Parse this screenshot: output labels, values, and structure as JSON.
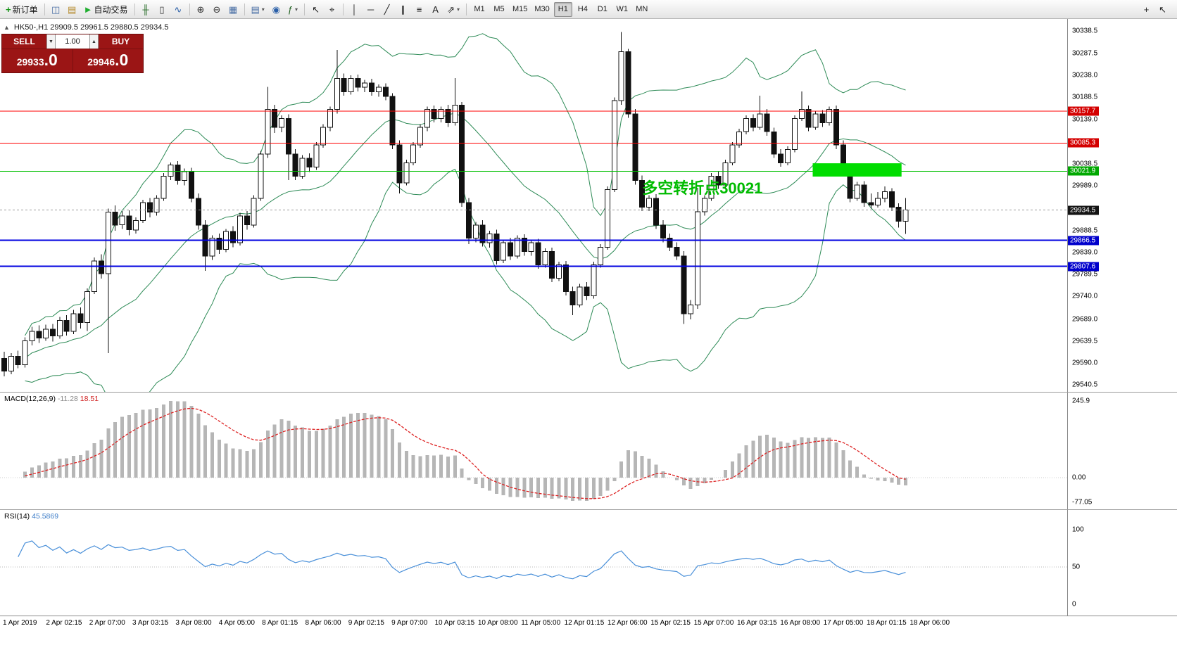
{
  "toolbar": {
    "groups": [
      {
        "items": [
          {
            "id": "new-order",
            "glyph": "+",
            "color": "#169416",
            "label": "新订单"
          }
        ]
      },
      {
        "items": [
          {
            "id": "chart-window",
            "glyph": "◫",
            "color": "#4a6fa5"
          },
          {
            "id": "profiles",
            "glyph": "▤",
            "color": "#b58a2a"
          },
          {
            "id": "autotrading",
            "glyph": "►",
            "color": "#1fae2f",
            "label": "自动交易"
          }
        ]
      },
      {
        "items": [
          {
            "id": "bar-chart",
            "glyph": "╫",
            "color": "#2a6e2a"
          },
          {
            "id": "candlestick-chart",
            "glyph": "▯",
            "color": "#333333"
          },
          {
            "id": "line-chart",
            "glyph": "∿",
            "color": "#2a5fa8"
          }
        ]
      },
      {
        "items": [
          {
            "id": "zoom-in",
            "glyph": "⊕",
            "color": "#333333"
          },
          {
            "id": "zoom-out",
            "glyph": "⊖",
            "color": "#333333"
          },
          {
            "id": "tile-windows",
            "glyph": "▦",
            "color": "#4a6fa5"
          }
        ]
      },
      {
        "items": [
          {
            "id": "new-chart",
            "glyph": "▤",
            "color": "#4a6fa5",
            "dropdown": true
          },
          {
            "id": "navigator",
            "glyph": "◉",
            "color": "#2a5fa8"
          },
          {
            "id": "indicators",
            "glyph": "ƒ",
            "color": "#206020",
            "dropdown": true
          }
        ]
      },
      {
        "items": [
          {
            "id": "cursor",
            "glyph": "↖",
            "color": "#222222"
          },
          {
            "id": "crosshair",
            "glyph": "⌖",
            "color": "#222222"
          }
        ]
      },
      {
        "items": [
          {
            "id": "vertical-line",
            "glyph": "│",
            "color": "#222222"
          },
          {
            "id": "horizontal-line",
            "glyph": "─",
            "color": "#222222"
          },
          {
            "id": "trendline",
            "glyph": "╱",
            "color": "#222222"
          },
          {
            "id": "channel",
            "glyph": "∥",
            "color": "#222222"
          },
          {
            "id": "fibonacci",
            "glyph": "≡",
            "color": "#222222"
          },
          {
            "id": "text",
            "glyph": "A",
            "color": "#222222"
          },
          {
            "id": "arrows",
            "glyph": "⇗",
            "color": "#222222",
            "dropdown": true
          }
        ]
      }
    ],
    "timeframes": {
      "items": [
        "M1",
        "M5",
        "M15",
        "M30",
        "H1",
        "H4",
        "D1",
        "W1",
        "MN"
      ],
      "active": "H1"
    },
    "right_icons": [
      {
        "id": "add",
        "glyph": "+"
      },
      {
        "id": "pointer-alt",
        "glyph": "↖"
      }
    ]
  },
  "symbol_line": {
    "text": "HK50-,H1 29909.5 29961.5 29880.5 29934.5"
  },
  "one_click": {
    "toggle_glyph": "▲",
    "sell_label": "SELL",
    "buy_label": "BUY",
    "volume": "1.00",
    "spin_up": "▲",
    "spin_down": "▼",
    "sell_price_int": "29933",
    "sell_price_frac": ".0",
    "buy_price_int": "29946",
    "buy_price_frac": ".0",
    "panel_color": "#9b1515"
  },
  "colors": {
    "candle_bull": "#ffffff",
    "candle_bear": "#111111",
    "wick": "#111111",
    "bollinger": "#2E8B57",
    "macd_histogram": "#b6b6b6",
    "macd_signal": "#dd2222",
    "rsi_line": "#4a90d9",
    "current_price_tag": "#141414"
  },
  "chart_data": {
    "type": "candlestick",
    "symbol": "HK50-",
    "timeframe": "H1",
    "ohlc_display": {
      "open": "29909.5",
      "high": "29961.5",
      "low": "29880.5",
      "close": "29934.5"
    },
    "price_axis": {
      "min": 29525,
      "max": 30365,
      "labels": [
        30338.5,
        30287.5,
        30238.0,
        30188.5,
        30139.0,
        30038.5,
        29989.0,
        29888.5,
        29839.0,
        29789.5,
        29740.0,
        29689.0,
        29639.5,
        29590.0,
        29540.5
      ]
    },
    "time_labels": [
      "1 Apr 2019",
      "2 Apr 02:15",
      "2 Apr 07:00",
      "3 Apr 03:15",
      "3 Apr 08:00",
      "4 Apr 05:00",
      "8 Apr 01:15",
      "8 Apr 06:00",
      "9 Apr 02:15",
      "9 Apr 07:00",
      "10 Apr 03:15",
      "10 Apr 08:00",
      "11 Apr 05:00",
      "12 Apr 01:15",
      "12 Apr 06:00",
      "15 Apr 02:15",
      "15 Apr 07:00",
      "16 Apr 03:15",
      "16 Apr 08:00",
      "17 Apr 05:00",
      "18 Apr 01:15",
      "18 Apr 06:00"
    ],
    "candles": [
      [
        29600,
        29615,
        29560,
        29572
      ],
      [
        29572,
        29612,
        29565,
        29605
      ],
      [
        29605,
        29618,
        29578,
        29586
      ],
      [
        29586,
        29648,
        29580,
        29640
      ],
      [
        29640,
        29672,
        29630,
        29661
      ],
      [
        29661,
        29675,
        29635,
        29646
      ],
      [
        29646,
        29676,
        29640,
        29666
      ],
      [
        29666,
        29678,
        29638,
        29651
      ],
      [
        29651,
        29694,
        29645,
        29686
      ],
      [
        29686,
        29698,
        29652,
        29661
      ],
      [
        29661,
        29710,
        29655,
        29701
      ],
      [
        29701,
        29715,
        29668,
        29681
      ],
      [
        29681,
        29758,
        29662,
        29751
      ],
      [
        29751,
        29828,
        29745,
        29820
      ],
      [
        29820,
        29835,
        29780,
        29791
      ],
      [
        29791,
        29938,
        29612,
        29930
      ],
      [
        29930,
        29945,
        29888,
        29901
      ],
      [
        29901,
        29932,
        29892,
        29921
      ],
      [
        29921,
        29934,
        29878,
        29890
      ],
      [
        29890,
        29918,
        29882,
        29911
      ],
      [
        29911,
        29958,
        29905,
        29951
      ],
      [
        29951,
        29962,
        29918,
        29930
      ],
      [
        29930,
        29968,
        29922,
        29961
      ],
      [
        29961,
        30018,
        29955,
        30011
      ],
      [
        30011,
        30042,
        30002,
        30036
      ],
      [
        30036,
        30045,
        29992,
        30001
      ],
      [
        30001,
        30028,
        29990,
        30021
      ],
      [
        30021,
        30030,
        29952,
        29961
      ],
      [
        29961,
        29972,
        29890,
        29901
      ],
      [
        29901,
        29912,
        29798,
        29831
      ],
      [
        29831,
        29878,
        29822,
        29871
      ],
      [
        29871,
        29882,
        29836,
        29846
      ],
      [
        29846,
        29892,
        29840,
        29886
      ],
      [
        29886,
        29898,
        29851,
        29861
      ],
      [
        29861,
        29928,
        29855,
        29921
      ],
      [
        29921,
        29932,
        29890,
        29901
      ],
      [
        29901,
        29968,
        29895,
        29961
      ],
      [
        29961,
        30068,
        29955,
        30061
      ],
      [
        30061,
        30212,
        30052,
        30161
      ],
      [
        30161,
        30172,
        30108,
        30121
      ],
      [
        30121,
        30148,
        30110,
        30141
      ],
      [
        30141,
        30150,
        30002,
        30061
      ],
      [
        30061,
        30072,
        30002,
        30011
      ],
      [
        30011,
        30058,
        30005,
        30051
      ],
      [
        30051,
        30062,
        30020,
        30031
      ],
      [
        30031,
        30088,
        30025,
        30081
      ],
      [
        30081,
        30128,
        30075,
        30121
      ],
      [
        30121,
        30168,
        30112,
        30161
      ],
      [
        30161,
        30295,
        30152,
        30231
      ],
      [
        30231,
        30242,
        30192,
        30201
      ],
      [
        30201,
        30238,
        30195,
        30231
      ],
      [
        30231,
        30240,
        30202,
        30211
      ],
      [
        30211,
        30228,
        30200,
        30221
      ],
      [
        30221,
        30230,
        30192,
        30201
      ],
      [
        30201,
        30218,
        30190,
        30211
      ],
      [
        30211,
        30220,
        30182,
        30191
      ],
      [
        30191,
        30198,
        30072,
        30081
      ],
      [
        30081,
        30092,
        29972,
        29996
      ],
      [
        29996,
        30048,
        29990,
        30041
      ],
      [
        30041,
        30088,
        30035,
        30081
      ],
      [
        30081,
        30128,
        30075,
        30121
      ],
      [
        30121,
        30168,
        30112,
        30161
      ],
      [
        30161,
        30170,
        30132,
        30141
      ],
      [
        30141,
        30168,
        30132,
        30161
      ],
      [
        30161,
        30172,
        30122,
        30131
      ],
      [
        30131,
        30232,
        30125,
        30171
      ],
      [
        30171,
        30178,
        29942,
        29951
      ],
      [
        29951,
        29962,
        29858,
        29871
      ],
      [
        29871,
        29908,
        29862,
        29901
      ],
      [
        29901,
        29912,
        29852,
        29861
      ],
      [
        29861,
        29888,
        29850,
        29881
      ],
      [
        29881,
        29890,
        29812,
        29821
      ],
      [
        29821,
        29868,
        29815,
        29861
      ],
      [
        29861,
        29872,
        29822,
        29831
      ],
      [
        29831,
        29878,
        29825,
        29871
      ],
      [
        29871,
        29880,
        29832,
        29841
      ],
      [
        29841,
        29868,
        29832,
        29861
      ],
      [
        29861,
        29870,
        29802,
        29811
      ],
      [
        29811,
        29848,
        29805,
        29841
      ],
      [
        29841,
        29850,
        29772,
        29781
      ],
      [
        29781,
        29818,
        29775,
        29811
      ],
      [
        29811,
        29820,
        29742,
        29751
      ],
      [
        29751,
        29762,
        29698,
        29721
      ],
      [
        29721,
        29768,
        29715,
        29761
      ],
      [
        29761,
        29772,
        29732,
        29741
      ],
      [
        29741,
        29818,
        29735,
        29811
      ],
      [
        29811,
        29858,
        29805,
        29851
      ],
      [
        29851,
        29988,
        29845,
        29981
      ],
      [
        29981,
        30188,
        29975,
        30181
      ],
      [
        30181,
        30336,
        30172,
        30291
      ],
      [
        30291,
        30298,
        30142,
        30151
      ],
      [
        30151,
        30162,
        29992,
        30001
      ],
      [
        30001,
        30012,
        29932,
        29941
      ],
      [
        29941,
        29968,
        29932,
        29961
      ],
      [
        29961,
        29970,
        29892,
        29901
      ],
      [
        29901,
        29912,
        29862,
        29871
      ],
      [
        29871,
        29882,
        29842,
        29851
      ],
      [
        29851,
        29862,
        29822,
        29831
      ],
      [
        29831,
        29842,
        29678,
        29701
      ],
      [
        29701,
        29732,
        29688,
        29721
      ],
      [
        29721,
        29985,
        29712,
        29931
      ],
      [
        29931,
        29968,
        29922,
        29961
      ],
      [
        29961,
        30018,
        29955,
        30011
      ],
      [
        30011,
        30022,
        29982,
        29991
      ],
      [
        29991,
        30048,
        29985,
        30041
      ],
      [
        30041,
        30088,
        30035,
        30081
      ],
      [
        30081,
        30118,
        30075,
        30111
      ],
      [
        30111,
        30148,
        30105,
        30141
      ],
      [
        30141,
        30150,
        30112,
        30121
      ],
      [
        30121,
        30192,
        30115,
        30151
      ],
      [
        30151,
        30162,
        30102,
        30111
      ],
      [
        30111,
        30120,
        30052,
        30061
      ],
      [
        30061,
        30072,
        30032,
        30041
      ],
      [
        30041,
        30078,
        30035,
        30071
      ],
      [
        30071,
        30148,
        30065,
        30141
      ],
      [
        30141,
        30202,
        30135,
        30161
      ],
      [
        30161,
        30170,
        30112,
        30121
      ],
      [
        30121,
        30158,
        30115,
        30151
      ],
      [
        30151,
        30160,
        30122,
        30131
      ],
      [
        30131,
        30168,
        30125,
        30161
      ],
      [
        30161,
        30170,
        30072,
        30081
      ],
      [
        30081,
        30092,
        30012,
        30021
      ],
      [
        30021,
        30032,
        29952,
        29961
      ],
      [
        29961,
        29998,
        29955,
        29991
      ],
      [
        29991,
        30000,
        29942,
        29951
      ],
      [
        29951,
        29972,
        29938,
        29946
      ],
      [
        29946,
        29975,
        29940,
        29961
      ],
      [
        29961,
        29988,
        29952,
        29976
      ],
      [
        29976,
        29984,
        29932,
        29941
      ],
      [
        29941,
        29950,
        29895,
        29909.5
      ],
      [
        29909.5,
        29961.5,
        29880.5,
        29934.5
      ]
    ],
    "bollinger": {
      "period": 20,
      "deviation": 2
    },
    "hlines": [
      {
        "value": 30157.7,
        "color": "#ff0000",
        "tag": "#d40000",
        "lw": 1
      },
      {
        "value": 30085.3,
        "color": "#ff0000",
        "tag": "#d40000",
        "lw": 1
      },
      {
        "value": 30021.9,
        "color": "#00c000",
        "tag": "#00a800",
        "lw": 1
      },
      {
        "value": 29866.5,
        "color": "#0000e0",
        "tag": "#0000cc",
        "lw": 2
      },
      {
        "value": 29807.6,
        "color": "#0000e0",
        "tag": "#0000cc",
        "lw": 2
      }
    ],
    "current_price": {
      "value": 29934.5
    },
    "rectangle": {
      "candle_from": 117,
      "candle_to": 129,
      "price_from": 30010,
      "price_to": 30040,
      "color": "#00dd00"
    },
    "annotation": {
      "text": "多空转折点30021",
      "color": "#00bb00",
      "candle": 92,
      "price": 29972
    },
    "macd": {
      "name": "MACD(12,26,9)",
      "value_main": "-11.28",
      "value_signal": "18.51",
      "axis_labels": [
        "245.9",
        "0.00",
        "-77.05"
      ]
    },
    "rsi": {
      "name": "RSI(14)",
      "value": "45.5869",
      "axis_labels": [
        "100",
        "50",
        "0"
      ],
      "level": 50
    }
  }
}
